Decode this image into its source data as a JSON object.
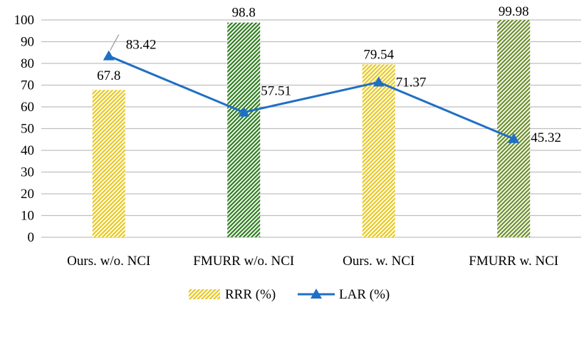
{
  "chart_data": {
    "type": "bar",
    "categories": [
      "Ours. w/o. NCI",
      "FMURR w/o. NCI",
      "Ours. w. NCI",
      "FMURR w. NCI"
    ],
    "series": [
      {
        "name": "RRR (%)",
        "kind": "bar",
        "values": [
          67.8,
          98.8,
          79.54,
          99.98
        ],
        "labels": [
          "67.8",
          "98.8",
          "79.54",
          "99.98"
        ],
        "colors": [
          "#e8c81e",
          "#2e7d1e",
          "#e8c81e",
          "#6b8e2a"
        ]
      },
      {
        "name": "LAR (%)",
        "kind": "line",
        "values": [
          83.42,
          57.51,
          71.37,
          45.32
        ],
        "labels": [
          "83.42",
          "57.51",
          "71.37",
          "45.32"
        ],
        "color": "#1f6fc5"
      }
    ],
    "y_ticks": [
      "0",
      "10",
      "20",
      "30",
      "40",
      "50",
      "60",
      "70",
      "80",
      "90",
      "100"
    ],
    "ylim": [
      0,
      100
    ],
    "grid": true,
    "legend_position": "bottom"
  }
}
